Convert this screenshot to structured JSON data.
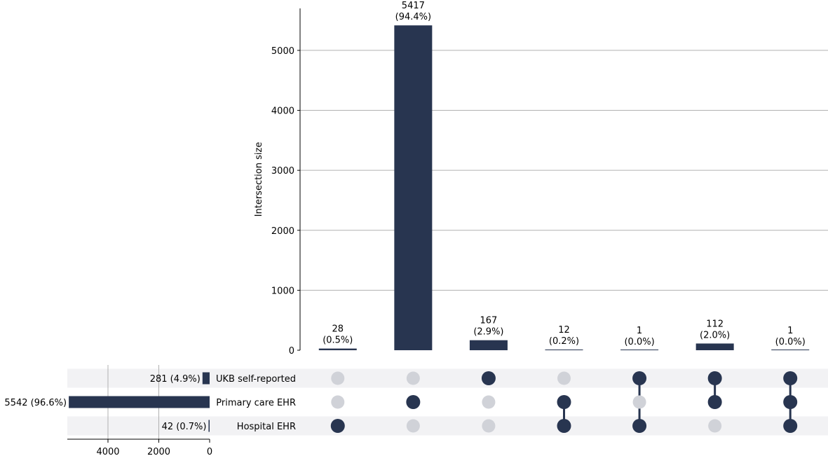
{
  "chart_data": {
    "type": "bar",
    "subtype": "upset",
    "ylabel": "Intersection size",
    "ylim": [
      0,
      5700
    ],
    "yticks": [
      0,
      1000,
      2000,
      3000,
      4000,
      5000
    ],
    "grid": true,
    "sets": [
      "UKB self-reported",
      "Primary care EHR",
      "Hospital EHR"
    ],
    "set_sizes": [
      281,
      5542,
      42
    ],
    "set_size_labels": [
      "281 (4.9%)",
      "5542 (96.6%)",
      "42 (0.7%)"
    ],
    "set_size_xlim": [
      5600,
      0
    ],
    "set_size_ticks": [
      4000,
      2000,
      0
    ],
    "intersections": [
      {
        "members": [
          false,
          false,
          true
        ],
        "value": 28,
        "label_count": "28",
        "label_pct": "(0.5%)"
      },
      {
        "members": [
          false,
          true,
          false
        ],
        "value": 5417,
        "label_count": "5417",
        "label_pct": "(94.4%)"
      },
      {
        "members": [
          true,
          false,
          false
        ],
        "value": 167,
        "label_count": "167",
        "label_pct": "(2.9%)"
      },
      {
        "members": [
          false,
          true,
          true
        ],
        "value": 12,
        "label_count": "12",
        "label_pct": "(0.2%)"
      },
      {
        "members": [
          true,
          false,
          true
        ],
        "value": 1,
        "label_count": "1",
        "label_pct": "(0.0%)"
      },
      {
        "members": [
          true,
          true,
          false
        ],
        "value": 112,
        "label_count": "112",
        "label_pct": "(2.0%)"
      },
      {
        "members": [
          true,
          true,
          true
        ],
        "value": 1,
        "label_count": "1",
        "label_pct": "(0.0%)"
      }
    ],
    "colors": {
      "bar": "#283550",
      "dot_active": "#283550",
      "dot_inactive": "#d0d2d8",
      "stripe": "#f2f2f4",
      "grid": "#b0b0b0"
    }
  }
}
